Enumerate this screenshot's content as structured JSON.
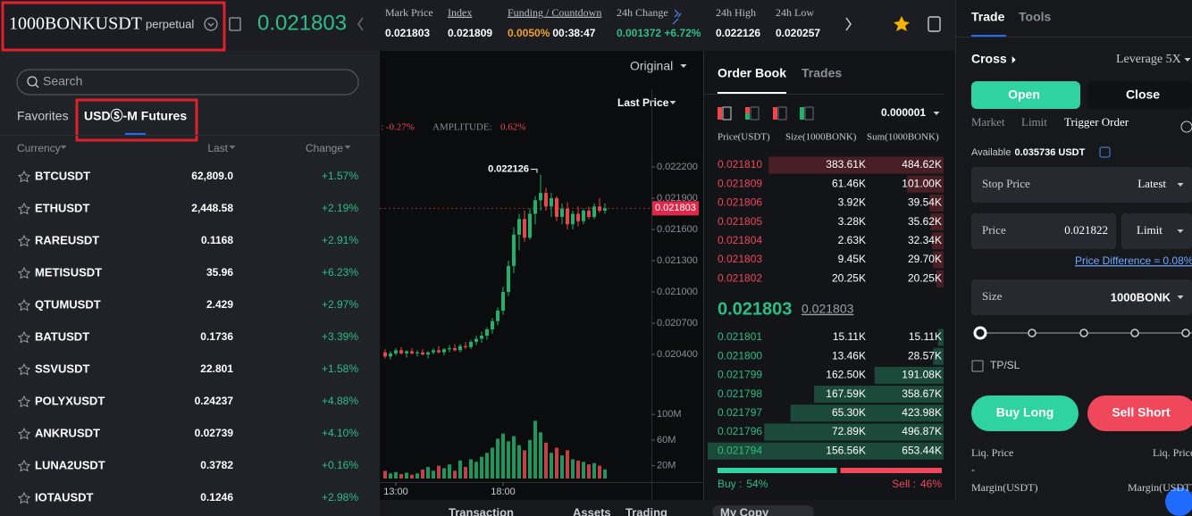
{
  "header": {
    "symbol": "1000BONKUSDT",
    "contract": "perpetual",
    "last_price": "0.021803",
    "stats": [
      {
        "label": "Mark Price",
        "value": "0.021803"
      },
      {
        "label": "Index",
        "value": "0.021809"
      },
      {
        "label": "Funding / Countdown",
        "value": "0.0050%",
        "value2": "00:38:47"
      },
      {
        "label": "24h Change",
        "value": "0.001372 +6.72%"
      },
      {
        "label": "24h High",
        "value": "0.022126"
      },
      {
        "label": "24h Low",
        "value": "0.020257"
      }
    ]
  },
  "market_list": {
    "search_placeholder": "Search",
    "tabs": [
      "Favorites",
      "USDⓈ-M Futures"
    ],
    "columns": [
      "Currency",
      "Last",
      "Change"
    ],
    "rows": [
      [
        "BTCUSDT",
        "62,809.0",
        "+1.57%"
      ],
      [
        "ETHUSDT",
        "2,448.58",
        "+2.19%"
      ],
      [
        "RAREUSDT",
        "0.1168",
        "+2.91%"
      ],
      [
        "METISUSDT",
        "35.96",
        "+6.23%"
      ],
      [
        "QTUMUSDT",
        "2.429",
        "+2.97%"
      ],
      [
        "BATUSDT",
        "0.1736",
        "+3.39%"
      ],
      [
        "SSVUSDT",
        "22.801",
        "+1.58%"
      ],
      [
        "POLYXUSDT",
        "0.24237",
        "+4.88%"
      ],
      [
        "ANKRUSDT",
        "0.02739",
        "+4.10%"
      ],
      [
        "LUNA2USDT",
        "0.3782",
        "+0.16%"
      ],
      [
        "IOTAUSDT",
        "0.1246",
        "+2.98%"
      ]
    ]
  },
  "chart": {
    "type": "candlestick",
    "view": "Original",
    "price_source": "Last Price",
    "change_text": ": -0.27%",
    "amplitude_label": "AMPLITUDE:",
    "amplitude_value": "0.62%",
    "up_color": "#20b26c",
    "down_color": "#ef454a",
    "high_marker": {
      "value": 0.022126,
      "label": "0.022126"
    },
    "current_price": {
      "value": 0.021803,
      "label": "0.021803"
    },
    "ylim": [
      0.0201,
      0.0225
    ],
    "yticks": [
      {
        "value": 0.0222,
        "label": "0.022200"
      },
      {
        "value": 0.0219,
        "label": "0.021900"
      },
      {
        "value": 0.0216,
        "label": "0.021600"
      },
      {
        "value": 0.0213,
        "label": "0.021300"
      },
      {
        "value": 0.021,
        "label": "0.021000"
      },
      {
        "value": 0.0207,
        "label": "0.020700"
      },
      {
        "value": 0.0204,
        "label": "0.020400"
      }
    ],
    "volume_lim": [
      0,
      110
    ],
    "volume_ticks": [
      {
        "value": 100,
        "label": "100M"
      },
      {
        "value": 60,
        "label": "60M"
      },
      {
        "value": 20,
        "label": "20M"
      }
    ],
    "x_labels": [
      {
        "value": 2,
        "label": "13:00"
      },
      {
        "value": 22,
        "label": "18:00"
      }
    ],
    "candles": [
      [
        0.02042,
        0.02045,
        0.02036,
        0.02038,
        12
      ],
      [
        0.02038,
        0.02043,
        0.02035,
        0.02041,
        8
      ],
      [
        0.02041,
        0.02046,
        0.02039,
        0.02044,
        10
      ],
      [
        0.02044,
        0.02047,
        0.0204,
        0.02041,
        7
      ],
      [
        0.02041,
        0.02044,
        0.02037,
        0.02043,
        9
      ],
      [
        0.02043,
        0.02046,
        0.0204,
        0.02041,
        6
      ],
      [
        0.02041,
        0.02044,
        0.02038,
        0.02042,
        8
      ],
      [
        0.02042,
        0.02045,
        0.02039,
        0.0204,
        14
      ],
      [
        0.0204,
        0.02043,
        0.02036,
        0.02042,
        18
      ],
      [
        0.02042,
        0.02046,
        0.0204,
        0.02044,
        12
      ],
      [
        0.02044,
        0.02048,
        0.02041,
        0.02042,
        20
      ],
      [
        0.02042,
        0.02046,
        0.02039,
        0.02045,
        16
      ],
      [
        0.02045,
        0.02049,
        0.02042,
        0.02046,
        22
      ],
      [
        0.02046,
        0.0205,
        0.02043,
        0.02044,
        12
      ],
      [
        0.02044,
        0.0205,
        0.02042,
        0.02048,
        28
      ],
      [
        0.02048,
        0.02052,
        0.02045,
        0.02047,
        18
      ],
      [
        0.02047,
        0.02054,
        0.02045,
        0.02052,
        30
      ],
      [
        0.02052,
        0.02058,
        0.02049,
        0.02055,
        26
      ],
      [
        0.02055,
        0.02062,
        0.02051,
        0.02058,
        34
      ],
      [
        0.02058,
        0.02066,
        0.02054,
        0.02064,
        40
      ],
      [
        0.02064,
        0.02075,
        0.0206,
        0.02072,
        48
      ],
      [
        0.02072,
        0.02085,
        0.02068,
        0.02082,
        62
      ],
      [
        0.02082,
        0.02105,
        0.02078,
        0.021,
        70
      ],
      [
        0.021,
        0.0213,
        0.02096,
        0.02125,
        58
      ],
      [
        0.02125,
        0.02162,
        0.02118,
        0.02155,
        66
      ],
      [
        0.02155,
        0.02175,
        0.0214,
        0.0217,
        52
      ],
      [
        0.0217,
        0.02178,
        0.02148,
        0.02152,
        44
      ],
      [
        0.02152,
        0.0218,
        0.0215,
        0.02175,
        60
      ],
      [
        0.02175,
        0.02192,
        0.02165,
        0.02188,
        90
      ],
      [
        0.02188,
        0.022126,
        0.02178,
        0.02195,
        72
      ],
      [
        0.02195,
        0.022,
        0.02178,
        0.02182,
        56
      ],
      [
        0.02182,
        0.02195,
        0.02172,
        0.0219,
        40
      ],
      [
        0.0219,
        0.02192,
        0.02168,
        0.02172,
        48
      ],
      [
        0.02172,
        0.02185,
        0.02165,
        0.0218,
        36
      ],
      [
        0.0218,
        0.02186,
        0.0216,
        0.02165,
        44
      ],
      [
        0.02165,
        0.02178,
        0.0216,
        0.02175,
        30
      ],
      [
        0.02175,
        0.02182,
        0.02163,
        0.02168,
        28
      ],
      [
        0.02168,
        0.0218,
        0.02165,
        0.02178,
        26
      ],
      [
        0.02178,
        0.02182,
        0.0217,
        0.02172,
        22
      ],
      [
        0.02172,
        0.02185,
        0.0217,
        0.02182,
        24
      ],
      [
        0.02182,
        0.0219,
        0.02176,
        0.02178,
        20
      ],
      [
        0.02178,
        0.02185,
        0.02175,
        0.021803,
        14
      ]
    ]
  },
  "order_book": {
    "tabs": [
      "Order Book",
      "Trades"
    ],
    "precision": "0.000001",
    "columns": [
      "Price(USDT)",
      "Size(1000BONK)",
      "Sum(1000BONK)"
    ],
    "asks": [
      [
        "0.021810",
        "383.61K",
        "484.62K"
      ],
      [
        "0.021809",
        "61.46K",
        "101.00K"
      ],
      [
        "0.021806",
        "3.92K",
        "39.54K"
      ],
      [
        "0.021805",
        "3.28K",
        "35.62K"
      ],
      [
        "0.021804",
        "2.63K",
        "32.34K"
      ],
      [
        "0.021803",
        "9.45K",
        "29.70K"
      ],
      [
        "0.021802",
        "20.25K",
        "20.25K"
      ]
    ],
    "mid_price": "0.021803",
    "mark_price": "0.021803",
    "bids": [
      [
        "0.021801",
        "15.11K",
        "15.11K"
      ],
      [
        "0.021800",
        "13.46K",
        "28.57K"
      ],
      [
        "0.021799",
        "162.50K",
        "191.08K"
      ],
      [
        "0.021798",
        "167.59K",
        "358.67K"
      ],
      [
        "0.021797",
        "65.30K",
        "423.98K"
      ],
      [
        "0.021796",
        "72.89K",
        "496.87K"
      ],
      [
        "0.021794",
        "156.56K",
        "653.44K"
      ]
    ],
    "buy_label": "Buy :",
    "buy_ratio": {
      "value": 54,
      "label": "54%"
    },
    "sell_label": "Sell :",
    "sell_ratio": {
      "value": 46,
      "label": "46%"
    }
  },
  "trade_panel": {
    "tabs": [
      "Trade",
      "Tools"
    ],
    "margin_mode": "Cross",
    "leverage": "Leverage 5X",
    "sides": [
      "Open",
      "Close"
    ],
    "order_types": [
      "Market",
      "Limit",
      "Trigger Order"
    ],
    "available_label": "Available",
    "available_value": "0.035736 USDT",
    "stop_price_label": "Stop Price",
    "stop_price_source": "Latest",
    "price_label": "Price",
    "price_value": "0.021822",
    "price_type": "Limit",
    "price_difference": "Price Difference ≈ 0.08%",
    "size_label": "Size",
    "size_unit": "1000BONK",
    "tpsl": "TP/SL",
    "buy": "Buy Long",
    "sell": "Sell Short",
    "liq_label": "Liq. Price",
    "liq_value": "-",
    "margin_label": "Margin(USDT)"
  },
  "bottom_tabs": [
    "Transaction",
    "Assets",
    "Trading",
    "My Copy"
  ]
}
